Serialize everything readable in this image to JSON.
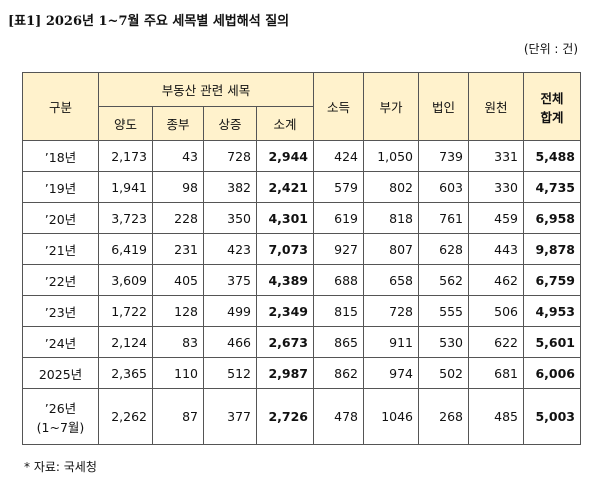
{
  "header": {
    "title": "[표1] 2026년 1~7월 주요 세목별 세법해석 질의",
    "unit": "(단위 : 건)"
  },
  "table": {
    "first_column": "구분",
    "group": {
      "label": "부동산 관련 세목",
      "columns": [
        "양도",
        "종부",
        "상증",
        "소계"
      ]
    },
    "other_columns": [
      "소득",
      "부가",
      "법인",
      "원천"
    ],
    "total_column": [
      "전체",
      "합계"
    ],
    "rows": [
      {
        "label": [
          "’18년"
        ],
        "cells": [
          "2,173",
          "43",
          "728",
          "2,944",
          "424",
          "1,050",
          "739",
          "331",
          "5,488"
        ]
      },
      {
        "label": [
          "’19년"
        ],
        "cells": [
          "1,941",
          "98",
          "382",
          "2,421",
          "579",
          "802",
          "603",
          "330",
          "4,735"
        ]
      },
      {
        "label": [
          "’20년"
        ],
        "cells": [
          "3,723",
          "228",
          "350",
          "4,301",
          "619",
          "818",
          "761",
          "459",
          "6,958"
        ]
      },
      {
        "label": [
          "’21년"
        ],
        "cells": [
          "6,419",
          "231",
          "423",
          "7,073",
          "927",
          "807",
          "628",
          "443",
          "9,878"
        ]
      },
      {
        "label": [
          "’22년"
        ],
        "cells": [
          "3,609",
          "405",
          "375",
          "4,389",
          "688",
          "658",
          "562",
          "462",
          "6,759"
        ]
      },
      {
        "label": [
          "’23년"
        ],
        "cells": [
          "1,722",
          "128",
          "499",
          "2,349",
          "815",
          "728",
          "555",
          "506",
          "4,953"
        ]
      },
      {
        "label": [
          "’24년"
        ],
        "cells": [
          "2,124",
          "83",
          "466",
          "2,673",
          "865",
          "911",
          "530",
          "622",
          "5,601"
        ]
      },
      {
        "label": [
          "2025년"
        ],
        "cells": [
          "2,365",
          "110",
          "512",
          "2,987",
          "862",
          "974",
          "502",
          "681",
          "6,006"
        ]
      },
      {
        "label": [
          "’26년",
          "(1~7월)"
        ],
        "cells": [
          "2,262",
          "87",
          "377",
          "2,726",
          "478",
          "1046",
          "268",
          "485",
          "5,003"
        ]
      }
    ]
  },
  "note": "* 자료: 국세청"
}
